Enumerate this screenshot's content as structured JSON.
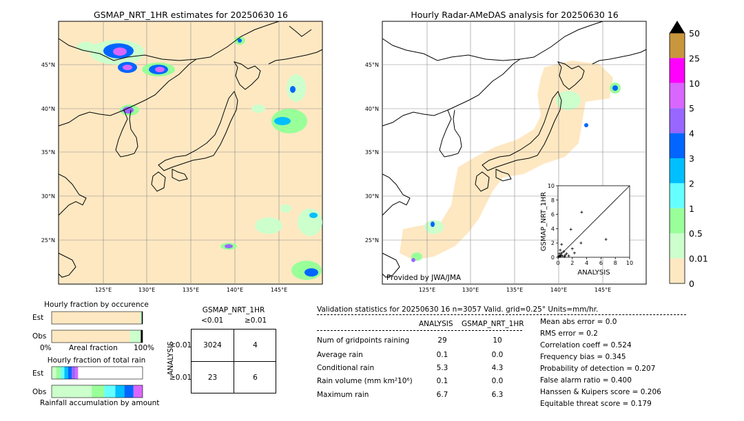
{
  "left_map": {
    "title": "GSMAP_NRT_1HR estimates for 20250630 16",
    "lat_labels": [
      "45°N",
      "40°N",
      "35°N",
      "30°N",
      "25°N"
    ],
    "lon_labels": [
      "125°E",
      "130°E",
      "135°E",
      "140°E",
      "145°E"
    ]
  },
  "right_map": {
    "title": "Hourly Radar-AMeDAS analysis for 20250630 16",
    "lat_labels": [
      "45°N",
      "40°N",
      "35°N",
      "30°N",
      "25°N"
    ],
    "lon_labels": [
      "125°E",
      "130°E",
      "135°E",
      "140°E",
      "145°E"
    ],
    "credit": "Provided by JWA/JMA"
  },
  "colorbar": {
    "labels": [
      "50",
      "25",
      "10",
      "5",
      "4",
      "3",
      "2",
      "1",
      "0.5",
      "0.01",
      "0"
    ],
    "colors": [
      "#c8963c",
      "#ff00ff",
      "#d966ff",
      "#9966ff",
      "#0066ff",
      "#00bfff",
      "#66ffff",
      "#99ff99",
      "#ccffcc",
      "#fee8c2"
    ],
    "top_arrow_color": "#000000"
  },
  "chart_data": [
    {
      "type": "scatter",
      "title": "",
      "xlabel": "ANALYSIS",
      "ylabel": "GSMAP_NRT_1HR",
      "xlim": [
        0,
        10
      ],
      "ylim": [
        0,
        10
      ],
      "xticks": [
        "0",
        "2",
        "4",
        "6",
        "8",
        "10"
      ],
      "yticks": [
        "0",
        "2",
        "4",
        "6",
        "8",
        "10"
      ],
      "diagonal": true,
      "points": [
        {
          "x": 3.3,
          "y": 6.3
        },
        {
          "x": 1.8,
          "y": 3.9
        },
        {
          "x": 6.7,
          "y": 2.5
        },
        {
          "x": 3.2,
          "y": 2.0
        },
        {
          "x": 2.0,
          "y": 1.2
        },
        {
          "x": 0.5,
          "y": 1.8
        },
        {
          "x": 0.3,
          "y": 1.0
        },
        {
          "x": 0.8,
          "y": 0.8
        },
        {
          "x": 1.2,
          "y": 0.5
        },
        {
          "x": 0.4,
          "y": 0.3
        },
        {
          "x": 0.2,
          "y": 0.5
        },
        {
          "x": 0.6,
          "y": 0.2
        },
        {
          "x": 0.1,
          "y": 0.1
        },
        {
          "x": 1.5,
          "y": 0.2
        },
        {
          "x": 0.9,
          "y": 0.1
        },
        {
          "x": 2.3,
          "y": 0.6
        },
        {
          "x": 0.2,
          "y": 0.2
        },
        {
          "x": 0.3,
          "y": 0.1
        },
        {
          "x": 1.0,
          "y": 0.3
        },
        {
          "x": 0.5,
          "y": 0.6
        }
      ]
    },
    {
      "type": "bar",
      "title": "Hourly fraction by occurence",
      "categories": [
        "Est",
        "Obs"
      ],
      "xlabel": "Areal fraction",
      "x_min_label": "0%",
      "x_max_label": "100%",
      "segments": [
        [
          {
            "fraction": 0.97,
            "color": "#fee8c2"
          },
          {
            "fraction": 0.02,
            "color": "#ccffcc"
          },
          {
            "fraction": 0.01,
            "color": "#000000"
          }
        ],
        [
          {
            "fraction": 0.86,
            "color": "#fee8c2"
          },
          {
            "fraction": 0.12,
            "color": "#ccffcc"
          },
          {
            "fraction": 0.02,
            "color": "#000000"
          }
        ]
      ]
    },
    {
      "type": "bar",
      "title": "Hourly fraction of total rain",
      "categories": [
        "Est",
        "Obs"
      ],
      "xlabel": "Rainfall accumulation by amount",
      "segments": [
        [
          {
            "fraction": 0.05,
            "color": "#ccffcc"
          },
          {
            "fraction": 0.05,
            "color": "#99ff99"
          },
          {
            "fraction": 0.04,
            "color": "#66ffff"
          },
          {
            "fraction": 0.04,
            "color": "#00bfff"
          },
          {
            "fraction": 0.04,
            "color": "#0066ff"
          },
          {
            "fraction": 0.04,
            "color": "#9966ff"
          },
          {
            "fraction": 0.03,
            "color": "#d966ff"
          }
        ],
        [
          {
            "fraction": 0.44,
            "color": "#ccffcc"
          },
          {
            "fraction": 0.14,
            "color": "#99ff99"
          },
          {
            "fraction": 0.12,
            "color": "#66ffff"
          },
          {
            "fraction": 0.1,
            "color": "#00bfff"
          },
          {
            "fraction": 0.1,
            "color": "#0066ff"
          },
          {
            "fraction": 0.1,
            "color": "#d966ff"
          }
        ]
      ]
    }
  ],
  "contingency": {
    "title": "GSMAP_NRT_1HR",
    "col_labels": [
      "<0.01",
      "≥0.01"
    ],
    "row_axis_label": "ANALYSIS",
    "row_labels": [
      "<0.01",
      "≥0.01"
    ],
    "cells": [
      [
        "3024",
        "4"
      ],
      [
        "23",
        "6"
      ]
    ]
  },
  "validation": {
    "header": "Validation statistics for 20250630 16  n=3057 Valid. grid=0.25° Units=mm/hr.",
    "col_analysis": "ANALYSIS",
    "col_gsmap": "GSMAP_NRT_1HR",
    "rows": [
      {
        "label": "Num of gridpoints raining",
        "analysis": "29",
        "gsmap": "10"
      },
      {
        "label": "Average rain",
        "analysis": "0.1",
        "gsmap": "0.0"
      },
      {
        "label": "Conditional rain",
        "analysis": "5.3",
        "gsmap": "4.3"
      },
      {
        "label": "Rain volume (mm km²10⁶)",
        "analysis": "0.1",
        "gsmap": "0.0"
      },
      {
        "label": "Maximum rain",
        "analysis": "6.7",
        "gsmap": "6.3"
      }
    ],
    "scores": [
      "Mean abs error =    0.0",
      "RMS error =    0.2",
      "Correlation coeff =  0.524",
      "Frequency bias =  0.345",
      "Probability of detection =  0.207",
      "False alarm ratio =  0.400",
      "Hanssen & Kuipers score =  0.206",
      "Equitable threat score =  0.179"
    ]
  }
}
